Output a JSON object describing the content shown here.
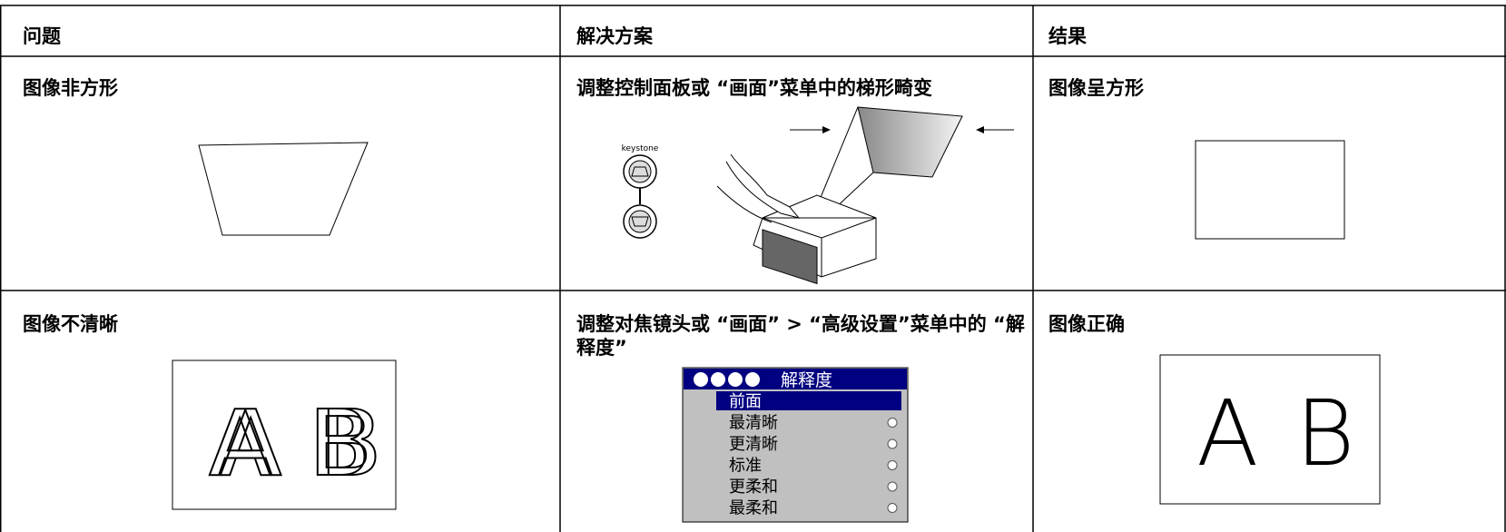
{
  "table": {
    "header": [
      "问题",
      "解决方案",
      "结果"
    ],
    "rows": [
      [
        "图像非方形",
        "调整控制面板或 “画面”菜单中的梯形畸变",
        "图像呈方形"
      ],
      [
        "图像不清晰",
        "调整对焦镜头或 “画面” > “高级设置”菜单中的 “解释度”",
        "图像正确"
      ]
    ]
  },
  "illustrations": {
    "keystone_label": "keystone",
    "blurry_letters": [
      "A",
      "B"
    ],
    "sharp_letters": [
      "A",
      "B"
    ],
    "menu": {
      "title": "解释度",
      "items": [
        "前面",
        "最清晰",
        "更清晰",
        "标准",
        "更柔和",
        "最柔和"
      ]
    }
  }
}
